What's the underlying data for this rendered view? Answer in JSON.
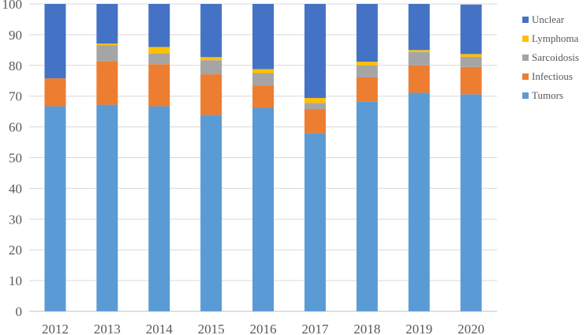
{
  "chart_data": {
    "type": "bar",
    "stacked": true,
    "categories": [
      "2012",
      "2013",
      "2014",
      "2015",
      "2016",
      "2017",
      "2018",
      "2019",
      "2020"
    ],
    "ylim": [
      0,
      100
    ],
    "yticks": [
      "0",
      "10",
      "20",
      "30",
      "40",
      "50",
      "60",
      "70",
      "80",
      "90",
      "100"
    ],
    "grid": "horizontal",
    "legend_position": "right",
    "series": [
      {
        "name": "Tumors",
        "color": "#5B9BD5",
        "values": [
          66.7,
          67.2,
          66.7,
          63.9,
          66.2,
          58.0,
          68.3,
          71.1,
          70.6
        ]
      },
      {
        "name": "Infectious",
        "color": "#ED7D31",
        "values": [
          9.1,
          14.2,
          13.7,
          13.2,
          7.3,
          7.8,
          7.8,
          8.9,
          8.9
        ]
      },
      {
        "name": "Sarcoidosis",
        "color": "#A5A5A5",
        "values": [
          0.0,
          5.1,
          3.5,
          4.6,
          4.0,
          2.0,
          3.9,
          4.4,
          3.3
        ]
      },
      {
        "name": "Lymphoma",
        "color": "#FFC000",
        "values": [
          0.0,
          0.6,
          2.1,
          1.0,
          1.3,
          1.6,
          1.2,
          0.6,
          0.9
        ]
      },
      {
        "name": "Unclear",
        "color": "#4472C4",
        "values": [
          24.2,
          12.9,
          14.0,
          17.3,
          21.2,
          30.6,
          18.8,
          15.0,
          16.1
        ]
      }
    ]
  }
}
